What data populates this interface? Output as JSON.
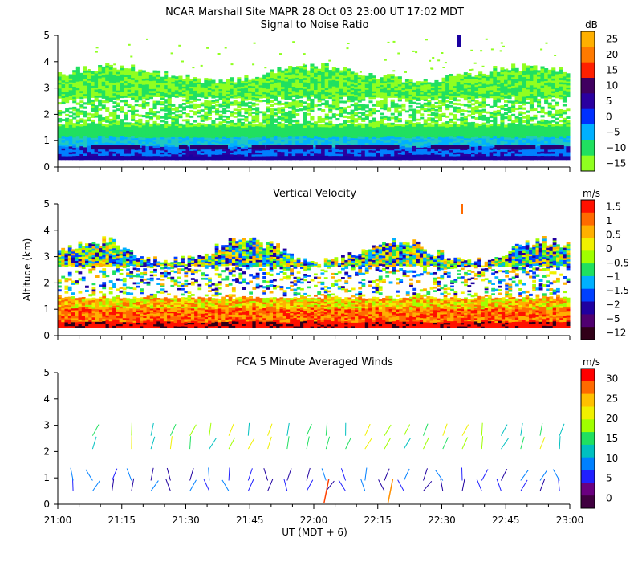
{
  "chart_data": [
    {
      "type": "heatmap",
      "header": "NCAR Marshall Site  MAPR 28 Oct 03  23:00 UT  17:02  MDT",
      "title": "Signal to Noise Ratio",
      "ylabel": "Altitude (km)",
      "xlabel": "UT  (MDT + 6)",
      "x_ticks": [
        "21:00",
        "21:15",
        "21:30",
        "21:45",
        "22:00",
        "22:15",
        "22:30",
        "22:45",
        "23:00"
      ],
      "y_ticks": [
        "0",
        "1",
        "2",
        "3",
        "4",
        "5"
      ],
      "ylim": [
        0,
        5
      ],
      "colorbar": {
        "unit": "dB",
        "labels": [
          "25",
          "20",
          "15",
          "10",
          "5",
          "0",
          "−5",
          "−10",
          "−15"
        ],
        "colors": [
          "#ffb000",
          "#ff7a00",
          "#ff2000",
          "#400060",
          "#2a00a0",
          "#0030ff",
          "#00b0ff",
          "#20e060",
          "#90ff20"
        ]
      }
    },
    {
      "type": "heatmap",
      "title": "Vertical Velocity",
      "ylabel": "Altitude (km)",
      "y_ticks": [
        "0",
        "1",
        "2",
        "3",
        "4",
        "5"
      ],
      "ylim": [
        0,
        5
      ],
      "colorbar": {
        "unit": "m/s",
        "labels": [
          "1.5",
          "1",
          "0.5",
          "0",
          "−0.5",
          "−1",
          "−1.5",
          "−2",
          "−5",
          "−12"
        ],
        "colors": [
          "#ff1000",
          "#ff6a00",
          "#ffb000",
          "#f0f000",
          "#a0ff00",
          "#20e060",
          "#00b0ff",
          "#0040ff",
          "#2000a0",
          "#500070",
          "#300018"
        ]
      }
    },
    {
      "type": "scatter",
      "title": "FCA 5 Minute Averaged Winds",
      "ylabel": "Altitude (km)",
      "y_ticks": [
        "0",
        "1",
        "2",
        "3",
        "4",
        "5"
      ],
      "ylim": [
        0,
        5
      ],
      "colorbar": {
        "unit": "m/s",
        "labels": [
          "30",
          "25",
          "20",
          "15",
          "10",
          "5",
          "0"
        ],
        "colors": [
          "#ff0000",
          "#ff6a00",
          "#ffc000",
          "#f0f000",
          "#a0ff00",
          "#20e060",
          "#00c0c0",
          "#0080ff",
          "#2020ff",
          "#6a0080",
          "#400040"
        ]
      }
    }
  ]
}
